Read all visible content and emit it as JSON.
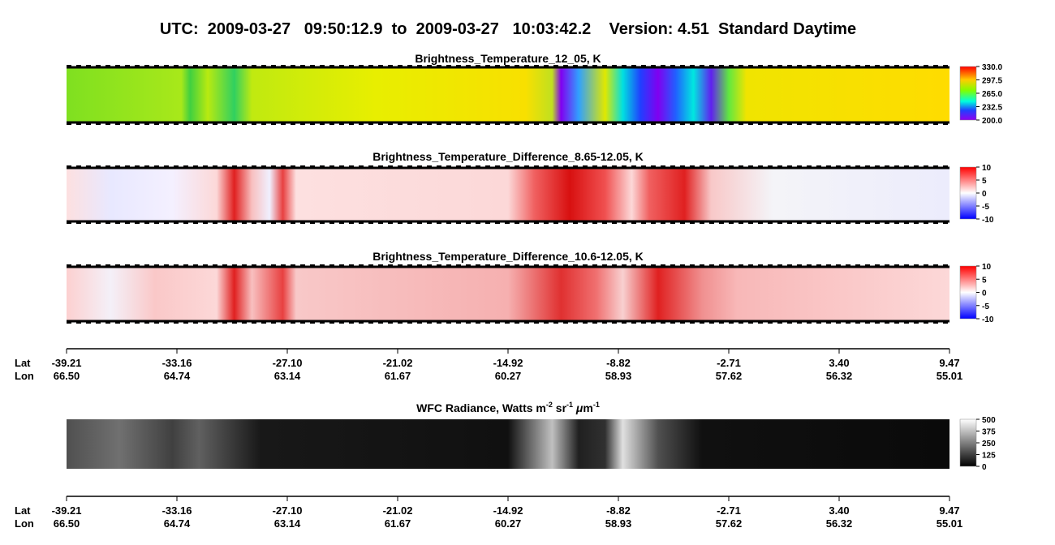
{
  "header": {
    "title": "UTC:  2009-03-27   09:50:12.9  to  2009-03-27   10:03:42.2    Version: 4.51  Standard Daytime"
  },
  "panels": [
    {
      "title": "Brightness_Temperature_12_05, K",
      "colorbar": [
        "330.0",
        "297.5",
        "265.0",
        "232.5",
        "200.0"
      ]
    },
    {
      "title": "Brightness_Temperature_Difference_8.65-12.05, K",
      "colorbar": [
        "10",
        "5",
        "0",
        "-5",
        "-10"
      ]
    },
    {
      "title": "Brightness_Temperature_Difference_10.6-12.05, K",
      "colorbar": [
        "10",
        "5",
        "0",
        "-5",
        "-10"
      ]
    }
  ],
  "radiance_panel": {
    "title_parts": [
      "WFC Radiance, Watts m",
      "-2",
      " sr",
      "-1",
      " ",
      "μ",
      "m",
      "-1"
    ],
    "colorbar": [
      "500",
      "375",
      "250",
      "125",
      "0"
    ]
  },
  "axes": [
    {
      "lat_label": "Lat",
      "lon_label": "Lon",
      "lat": [
        "-39.21",
        "-33.16",
        "-27.10",
        "-21.02",
        "-14.92",
        "-8.82",
        "-2.71",
        "3.40",
        "9.47"
      ],
      "lon": [
        "66.50",
        "64.74",
        "63.14",
        "61.67",
        "60.27",
        "58.93",
        "57.62",
        "56.32",
        "55.01"
      ]
    },
    {
      "lat_label": "Lat",
      "lon_label": "Lon",
      "lat": [
        "-39.21",
        "-33.16",
        "-27.10",
        "-21.02",
        "-14.92",
        "-8.82",
        "-2.71",
        "3.40",
        "9.47"
      ],
      "lon": [
        "66.50",
        "64.74",
        "63.14",
        "61.67",
        "60.27",
        "58.93",
        "57.62",
        "56.32",
        "55.01"
      ]
    }
  ]
}
